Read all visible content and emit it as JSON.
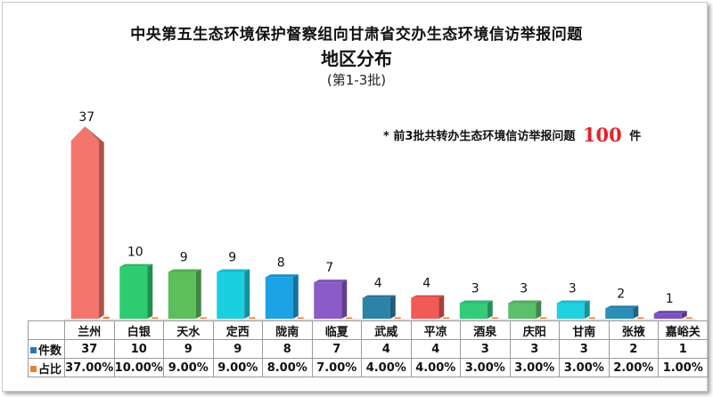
{
  "title_line1": "中央第五生态环境保护督察组向甘肃省交办生态环境信访举报问题",
  "title_line2": "地区分布",
  "title_line3": "(第1-3批)",
  "note_prefix": "*  前3批共转办生态环境信访举报问题",
  "note_number": "100",
  "note_suffix": "件",
  "chart_data": {
    "type": "bar",
    "categories": [
      "兰州",
      "白银",
      "天水",
      "定西",
      "陇南",
      "临夏",
      "武威",
      "平凉",
      "酒泉",
      "庆阳",
      "甘南",
      "张掖",
      "嘉峪关"
    ],
    "series": [
      {
        "name": "件数",
        "values": [
          37,
          10,
          9,
          9,
          8,
          7,
          4,
          4,
          3,
          3,
          3,
          2,
          1
        ]
      },
      {
        "name": "占比",
        "values": [
          "37.00%",
          "10.00%",
          "9.00%",
          "9.00%",
          "8.00%",
          "7.00%",
          "4.00%",
          "4.00%",
          "3.00%",
          "3.00%",
          "3.00%",
          "2.00%",
          "1.00%"
        ]
      }
    ],
    "bar_colors": [
      "#f4756b",
      "#2ecc71",
      "#5cbf5c",
      "#19cfe0",
      "#1aa1e6",
      "#8b5cc7",
      "#2c83a8",
      "#f25a55",
      "#33cc7a",
      "#5cbf6c",
      "#1fd0e0",
      "#2b8fb8",
      "#7d52c0"
    ],
    "series_colors": {
      "件数": "#2e75b6",
      "占比": "#ed7d31"
    },
    "ylim": [
      0,
      40
    ]
  }
}
